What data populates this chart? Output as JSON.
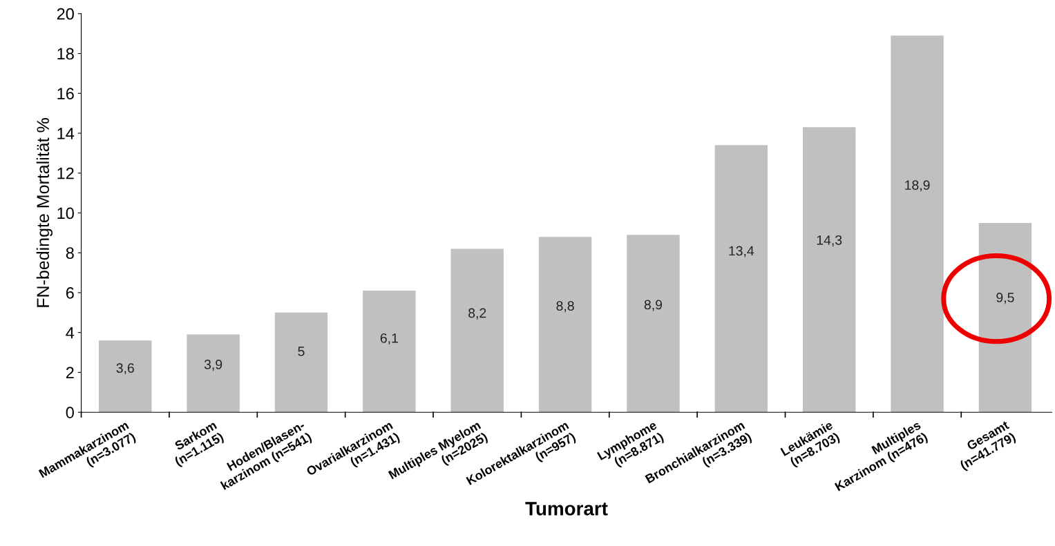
{
  "chart_data": {
    "type": "bar",
    "xlabel": "Tumorart",
    "ylabel": "FN-bedingte Mortalität %",
    "categories": [
      "Mammakarzinom\n(n=3.077)",
      "Sarkom\n(n=1.115)",
      "Hoden/Blasen-\nkarzinom (n=541)",
      "Ovarialkarzinom\n(n=1.431)",
      "Multiples Myelom\n(n=2025)",
      "Kolorektalkarzinom\n(n=957)",
      "Lymphome\n(n=8.871)",
      "Bronchialkarzinom\n(n=3.339)",
      "Leukämie\n(n=8.703)",
      "Multiples\nKarzinom (n=476)",
      "Gesamt\n(n=41.779)"
    ],
    "values": [
      3.6,
      3.9,
      5,
      6.1,
      8.2,
      8.8,
      8.9,
      13.4,
      14.3,
      18.9,
      9.5
    ],
    "value_labels": [
      "3,6",
      "3,9",
      "5",
      "6,1",
      "8,2",
      "8,8",
      "8,9",
      "13,4",
      "14,3",
      "18,9",
      "9,5"
    ],
    "color": "#c0c0c0",
    "ylim": [
      0,
      20
    ],
    "yticks": [
      0,
      2,
      4,
      6,
      8,
      10,
      12,
      14,
      16,
      18,
      20
    ],
    "grid": false,
    "legend": false
  }
}
